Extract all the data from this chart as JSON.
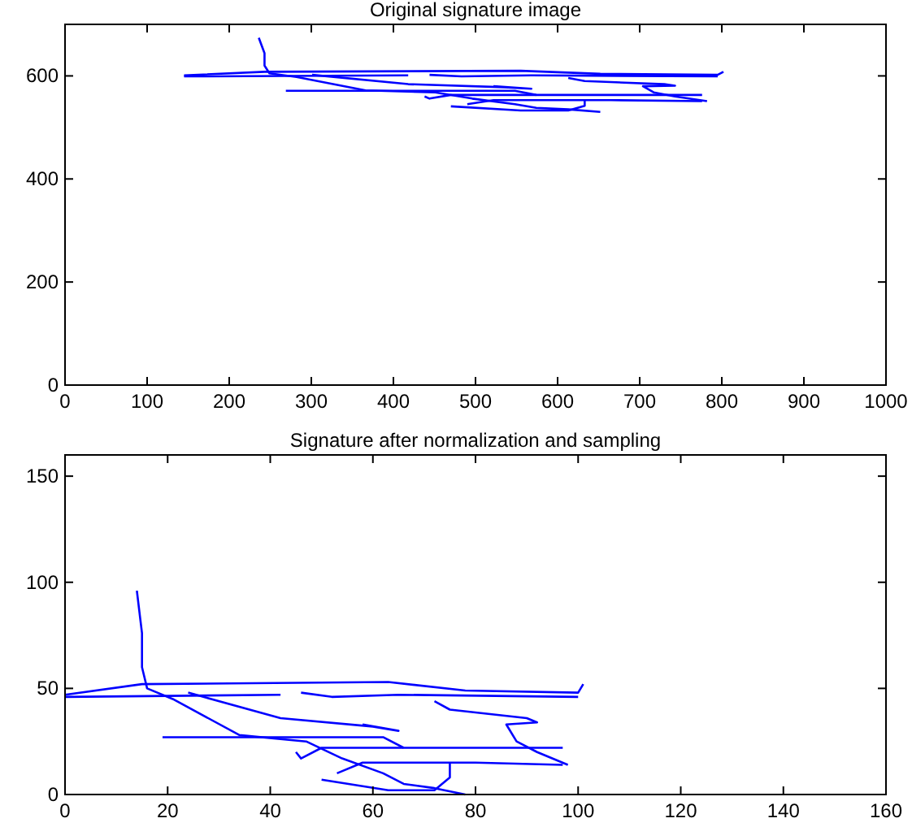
{
  "chart_data": [
    {
      "type": "line",
      "title": "Original signature image",
      "xlim": [
        0,
        1000
      ],
      "ylim": [
        0,
        700
      ],
      "xticks": [
        0,
        100,
        200,
        300,
        400,
        500,
        600,
        700,
        800,
        900,
        1000
      ],
      "yticks": [
        0,
        200,
        400,
        600
      ],
      "marker": "none",
      "line_style": "solid",
      "series": [
        {
          "color": "#0000ff",
          "x": [
            236,
            243,
            243,
            249,
            282,
            366,
            451,
            496,
            548,
            574,
            613,
            652
          ],
          "values": [
            674,
            644,
            620,
            605,
            598,
            572,
            568,
            556,
            545,
            538,
            535,
            530
          ]
        },
        {
          "color": "#0000ff",
          "x": [
            145,
            243,
            555,
            652,
            795,
            802
          ],
          "values": [
            601,
            608,
            610,
            604,
            602,
            608
          ]
        },
        {
          "color": "#0000ff",
          "x": [
            145,
            418
          ],
          "values": [
            599,
            601
          ]
        },
        {
          "color": "#0000ff",
          "x": [
            444,
            483,
            568,
            795
          ],
          "values": [
            602,
            599,
            601,
            599
          ]
        },
        {
          "color": "#0000ff",
          "x": [
            301,
            418,
            535,
            568,
            522
          ],
          "values": [
            602,
            584,
            578,
            575,
            580
          ]
        },
        {
          "color": "#0000ff",
          "x": [
            269,
            548,
            574
          ],
          "values": [
            571,
            571,
            563
          ]
        },
        {
          "color": "#0000ff",
          "x": [
            438,
            444,
            470,
            776
          ],
          "values": [
            560,
            556,
            563,
            563
          ]
        },
        {
          "color": "#0000ff",
          "x": [
            490,
            522,
            665,
            776
          ],
          "values": [
            545,
            553,
            553,
            551
          ]
        },
        {
          "color": "#0000ff",
          "x": [
            613,
            633,
            730,
            743,
            704,
            717,
            743,
            782
          ],
          "values": [
            596,
            590,
            584,
            581,
            580,
            568,
            560,
            551
          ]
        },
        {
          "color": "#0000ff",
          "x": [
            470,
            555,
            613,
            633,
            633
          ],
          "values": [
            541,
            533,
            533,
            542,
            553
          ]
        }
      ]
    },
    {
      "type": "line",
      "title": "Signature after normalization and sampling",
      "xlim": [
        0,
        160
      ],
      "ylim": [
        0,
        160
      ],
      "xticks": [
        0,
        20,
        40,
        60,
        80,
        100,
        120,
        140,
        160
      ],
      "yticks": [
        0,
        50,
        100,
        150
      ],
      "marker": "none",
      "line_style": "solid",
      "series": [
        {
          "color": "#0000ff",
          "x": [
            14,
            15,
            15,
            16,
            21,
            34,
            47,
            54,
            62,
            66,
            72,
            78
          ],
          "values": [
            96,
            76,
            60,
            50,
            45,
            28,
            25,
            17,
            10,
            5,
            3,
            0
          ]
        },
        {
          "color": "#0000ff",
          "x": [
            0,
            15,
            63,
            78,
            100,
            101
          ],
          "values": [
            47,
            52,
            53,
            49,
            48,
            52
          ]
        },
        {
          "color": "#0000ff",
          "x": [
            0,
            42
          ],
          "values": [
            46,
            47
          ]
        },
        {
          "color": "#0000ff",
          "x": [
            46,
            52,
            65,
            100
          ],
          "values": [
            48,
            46,
            47,
            46
          ]
        },
        {
          "color": "#0000ff",
          "x": [
            24,
            42,
            60,
            65,
            58
          ],
          "values": [
            48,
            36,
            32,
            30,
            33
          ]
        },
        {
          "color": "#0000ff",
          "x": [
            19,
            62,
            66
          ],
          "values": [
            27,
            27,
            22
          ]
        },
        {
          "color": "#0000ff",
          "x": [
            45,
            46,
            50,
            97
          ],
          "values": [
            20,
            17,
            22,
            22
          ]
        },
        {
          "color": "#0000ff",
          "x": [
            53,
            58,
            80,
            97
          ],
          "values": [
            10,
            15,
            15,
            14
          ]
        },
        {
          "color": "#0000ff",
          "x": [
            72,
            75,
            90,
            92,
            86,
            88,
            92,
            98
          ],
          "values": [
            44,
            40,
            36,
            34,
            33,
            25,
            20,
            14
          ]
        },
        {
          "color": "#0000ff",
          "x": [
            50,
            63,
            72,
            75,
            75
          ],
          "values": [
            7,
            2,
            2,
            8,
            15
          ]
        }
      ]
    }
  ]
}
